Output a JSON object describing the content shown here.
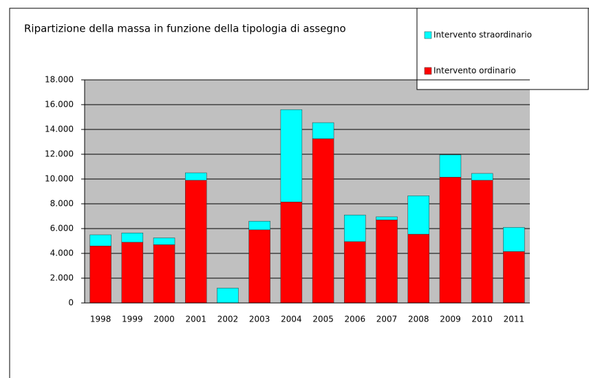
{
  "chart_data": {
    "type": "stacked_bar",
    "title": "Ripartizione della massa in funzione della tipologia di assegno",
    "categories": [
      "1998",
      "1999",
      "2000",
      "2001",
      "2002",
      "2003",
      "2004",
      "2005",
      "2006",
      "2007",
      "2008",
      "2009",
      "2010",
      "2011"
    ],
    "series": [
      {
        "name": "Intervento ordinario",
        "color": "#ff0000",
        "values": [
          4600,
          4900,
          4700,
          9900,
          0,
          5900,
          8150,
          13250,
          4950,
          6700,
          5550,
          10150,
          9900,
          4150
        ]
      },
      {
        "name": "Intervento straordinario",
        "color": "#00ffff",
        "values": [
          900,
          750,
          550,
          600,
          1200,
          700,
          7450,
          1300,
          2150,
          250,
          3100,
          1800,
          550,
          1950
        ]
      }
    ],
    "ylim": [
      0,
      18000
    ],
    "yticks": [
      0,
      {
        "value": 2000,
        "label": "2.000"
      },
      {
        "value": 4000,
        "label": "4.000"
      },
      {
        "value": 6000,
        "label": "6.000"
      },
      {
        "value": 8000,
        "label": "8.000"
      },
      {
        "value": 10000,
        "label": "10.000"
      },
      {
        "value": 12000,
        "label": "12.000"
      },
      {
        "value": 14000,
        "label": "14.000"
      },
      {
        "value": 16000,
        "label": "16.000"
      },
      {
        "value": 18000,
        "label": "18.000"
      }
    ],
    "grid": true,
    "legend": "top-right"
  }
}
